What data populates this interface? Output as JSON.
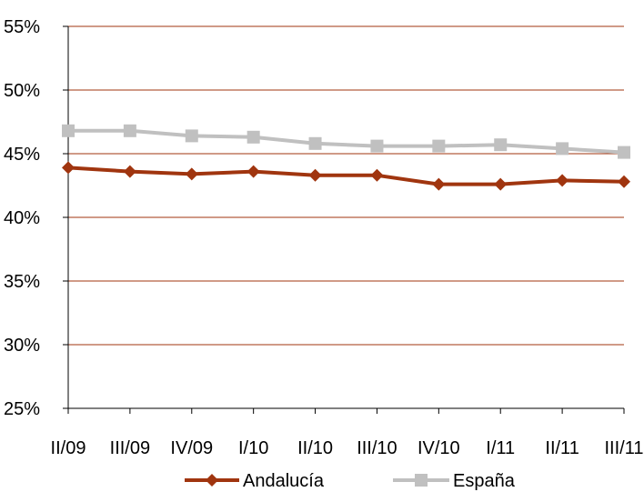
{
  "chart_data": {
    "type": "line",
    "categories": [
      "II/09",
      "III/09",
      "IV/09",
      "I/10",
      "II/10",
      "III/10",
      "IV/10",
      "I/11",
      "II/11",
      "III/11"
    ],
    "series": [
      {
        "name": "Andalucía",
        "values": [
          43.9,
          43.6,
          43.4,
          43.6,
          43.3,
          43.3,
          42.6,
          42.6,
          42.9,
          42.8
        ],
        "color": "#a0350f",
        "marker": "diamond"
      },
      {
        "name": "España",
        "values": [
          46.8,
          46.8,
          46.4,
          46.3,
          45.8,
          45.6,
          45.6,
          45.7,
          45.4,
          45.1
        ],
        "color": "#c0c0c0",
        "marker": "square"
      }
    ],
    "yticks": [
      "25%",
      "30%",
      "35%",
      "40%",
      "45%",
      "50%",
      "55%"
    ],
    "ylim": [
      25,
      55
    ],
    "grid": true,
    "legend_position": "bottom",
    "gridline_color": "#a0350f"
  }
}
